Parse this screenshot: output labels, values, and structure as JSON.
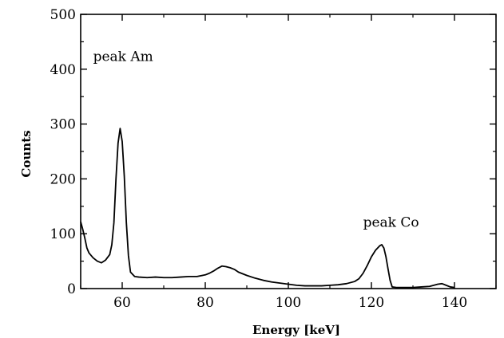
{
  "chart_data": {
    "type": "line",
    "title": "",
    "xlabel": "Energy [keV]",
    "ylabel": "Counts",
    "xlim": [
      50,
      150
    ],
    "ylim": [
      0,
      500
    ],
    "xticks": [
      60,
      80,
      100,
      120,
      140
    ],
    "yticks": [
      0,
      100,
      200,
      300,
      400,
      500
    ],
    "grid": false,
    "annotations": [
      {
        "text": "peak Am",
        "x": 53,
        "y": 415
      },
      {
        "text": "peak Co",
        "x": 118,
        "y": 113
      }
    ],
    "series": [
      {
        "x": [
          50,
          50.5,
          51,
          51.5,
          52,
          53,
          54,
          55,
          56,
          57,
          57.5,
          58,
          58.5,
          59,
          59.5,
          60,
          60.5,
          61,
          61.5,
          62,
          63,
          64,
          66,
          68,
          70,
          72,
          74,
          76,
          78,
          80,
          81,
          82,
          83,
          84,
          85,
          86,
          87,
          88,
          90,
          92,
          94,
          96,
          98,
          100,
          102,
          104,
          106,
          108,
          110,
          112,
          114,
          116,
          117,
          118,
          119,
          120,
          121,
          122,
          122.5,
          123,
          123.5,
          124,
          124.5,
          125,
          126,
          128,
          130,
          132,
          134,
          135,
          136,
          137,
          138,
          139,
          140
        ],
        "values": [
          122,
          108,
          92,
          74,
          65,
          56,
          50,
          47,
          52,
          62,
          80,
          120,
          200,
          265,
          292,
          268,
          205,
          120,
          60,
          30,
          22,
          21,
          20,
          21,
          20,
          20,
          21,
          22,
          22,
          25,
          28,
          32,
          37,
          41,
          40,
          38,
          35,
          30,
          24,
          19,
          15,
          12,
          10,
          8,
          6,
          5,
          5,
          5,
          6,
          7,
          9,
          13,
          18,
          28,
          42,
          58,
          70,
          78,
          80,
          74,
          58,
          36,
          15,
          3,
          2,
          2,
          2,
          3,
          4,
          6,
          8,
          9,
          6,
          3,
          2
        ]
      }
    ]
  }
}
